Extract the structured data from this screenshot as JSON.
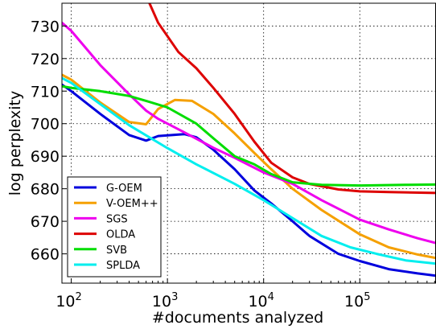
{
  "chart_data": {
    "type": "line",
    "title": "",
    "xlabel": "#documents analyzed",
    "ylabel": "log perplexity",
    "xscale": "log",
    "xlim": [
      80,
      620000
    ],
    "ylim": [
      651,
      737
    ],
    "grid": true,
    "legend_position": "bottom-left",
    "xticks": [
      {
        "value": 100,
        "base": "10",
        "exp": "2"
      },
      {
        "value": 1000,
        "base": "10",
        "exp": "3"
      },
      {
        "value": 10000,
        "base": "10",
        "exp": "4"
      },
      {
        "value": 100000,
        "base": "10",
        "exp": "5"
      }
    ],
    "yticks": [
      {
        "value": 660,
        "label": "660"
      },
      {
        "value": 670,
        "label": "670"
      },
      {
        "value": 680,
        "label": "680"
      },
      {
        "value": 690,
        "label": "690"
      },
      {
        "value": 700,
        "label": "700"
      },
      {
        "value": 710,
        "label": "710"
      },
      {
        "value": 720,
        "label": "720"
      },
      {
        "value": 730,
        "label": "730"
      }
    ],
    "series": [
      {
        "name": "G-OEM",
        "color": "#0000dd",
        "points": [
          [
            80,
            712
          ],
          [
            100,
            710
          ],
          [
            200,
            703
          ],
          [
            400,
            696.5
          ],
          [
            600,
            694.8
          ],
          [
            800,
            696.2
          ],
          [
            1500,
            696.8
          ],
          [
            2000,
            695.8
          ],
          [
            3000,
            692
          ],
          [
            5000,
            686
          ],
          [
            8000,
            679.5
          ],
          [
            12000,
            675.5
          ],
          [
            20000,
            670
          ],
          [
            30000,
            665.5
          ],
          [
            60000,
            660
          ],
          [
            100000,
            657.8
          ],
          [
            200000,
            655.3
          ],
          [
            400000,
            654
          ],
          [
            620000,
            653.3
          ]
        ]
      },
      {
        "name": "V-OEM++",
        "color": "#f5a000",
        "points": [
          [
            80,
            715
          ],
          [
            100,
            713.5
          ],
          [
            200,
            706.5
          ],
          [
            400,
            700.5
          ],
          [
            600,
            699.8
          ],
          [
            800,
            704.5
          ],
          [
            1200,
            707.3
          ],
          [
            1800,
            707
          ],
          [
            3000,
            703
          ],
          [
            5000,
            697
          ],
          [
            8000,
            691
          ],
          [
            12000,
            686
          ],
          [
            20000,
            680
          ],
          [
            40000,
            673.5
          ],
          [
            100000,
            666
          ],
          [
            200000,
            662
          ],
          [
            400000,
            659.8
          ],
          [
            620000,
            658.7
          ]
        ]
      },
      {
        "name": "SGS",
        "color": "#ee00ee",
        "points": [
          [
            80,
            731
          ],
          [
            100,
            728.5
          ],
          [
            200,
            718
          ],
          [
            400,
            709
          ],
          [
            600,
            704
          ],
          [
            800,
            701.5
          ],
          [
            1500,
            697.3
          ],
          [
            3000,
            692.6
          ],
          [
            5000,
            689.5
          ],
          [
            10000,
            685
          ],
          [
            20000,
            681.5
          ],
          [
            40000,
            676.5
          ],
          [
            100000,
            670.5
          ],
          [
            200000,
            667.5
          ],
          [
            400000,
            664.8
          ],
          [
            620000,
            663.3
          ]
        ]
      },
      {
        "name": "OLDA",
        "color": "#dd0000",
        "points": [
          [
            650,
            737
          ],
          [
            800,
            731
          ],
          [
            1300,
            722
          ],
          [
            2000,
            717
          ],
          [
            3000,
            711
          ],
          [
            5000,
            703
          ],
          [
            8000,
            694.5
          ],
          [
            12000,
            688
          ],
          [
            20000,
            683.5
          ],
          [
            30000,
            681.5
          ],
          [
            60000,
            679.8
          ],
          [
            100000,
            679.2
          ],
          [
            200000,
            679
          ],
          [
            620000,
            678.7
          ]
        ]
      },
      {
        "name": "SVB",
        "color": "#00dd00",
        "points": [
          [
            80,
            711.5
          ],
          [
            100,
            711
          ],
          [
            200,
            710
          ],
          [
            400,
            708.5
          ],
          [
            600,
            707
          ],
          [
            1000,
            705
          ],
          [
            2000,
            700
          ],
          [
            3000,
            695.5
          ],
          [
            5000,
            690
          ],
          [
            8000,
            687.5
          ],
          [
            12000,
            684.5
          ],
          [
            20000,
            682
          ],
          [
            40000,
            681.2
          ],
          [
            100000,
            681
          ],
          [
            300000,
            681.2
          ],
          [
            620000,
            681.3
          ]
        ]
      },
      {
        "name": "SPLDA",
        "color": "#00eeee",
        "points": [
          [
            80,
            714
          ],
          [
            100,
            712.5
          ],
          [
            200,
            706
          ],
          [
            400,
            699.5
          ],
          [
            1000,
            692.5
          ],
          [
            2000,
            687.5
          ],
          [
            5000,
            681.5
          ],
          [
            10000,
            676.5
          ],
          [
            20000,
            671
          ],
          [
            40000,
            665.5
          ],
          [
            80000,
            662
          ],
          [
            150000,
            660
          ],
          [
            300000,
            658
          ],
          [
            620000,
            657
          ]
        ]
      }
    ]
  }
}
